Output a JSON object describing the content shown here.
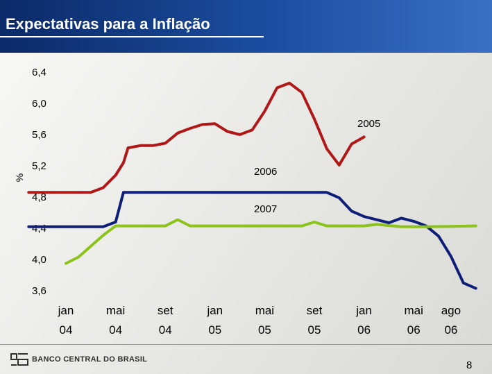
{
  "slide": {
    "title": "Expectativas para a Inflação",
    "footer_bank": "BANCO CENTRAL DO BRASIL",
    "page_number": "8"
  },
  "chart_data": {
    "type": "line",
    "title": "Expectativas para a Inflação",
    "ylabel": "%",
    "ylim": [
      3.6,
      6.4
    ],
    "yticks": [
      6.4,
      6.0,
      5.6,
      5.2,
      4.8,
      4.4,
      4.0,
      3.6
    ],
    "ytick_labels": [
      "6,4",
      "6,0",
      "5,6",
      "5,2",
      "4,8",
      "4,4",
      "4,0",
      "3,6"
    ],
    "xticks": [
      {
        "top": "jan",
        "bottom": "04",
        "date": "2004-01"
      },
      {
        "top": "mai",
        "bottom": "04",
        "date": "2004-05"
      },
      {
        "top": "set",
        "bottom": "04",
        "date": "2004-09"
      },
      {
        "top": "jan",
        "bottom": "05",
        "date": "2005-01"
      },
      {
        "top": "mai",
        "bottom": "05",
        "date": "2005-05"
      },
      {
        "top": "set",
        "bottom": "05",
        "date": "2005-09"
      },
      {
        "top": "jan",
        "bottom": "06",
        "date": "2006-01"
      },
      {
        "top": "mai",
        "bottom": "06",
        "date": "2006-05"
      },
      {
        "top": "ago",
        "bottom": "06",
        "date": "2006-08"
      }
    ],
    "grid": false,
    "series": [
      {
        "name": "2005",
        "color": "#b01818",
        "points": [
          [
            "2003-10",
            4.86
          ],
          [
            "2004-03",
            4.86
          ],
          [
            "2004-04",
            4.92
          ],
          [
            "2004-05",
            5.08
          ],
          [
            "2004-05-20",
            5.24
          ],
          [
            "2004-06",
            5.43
          ],
          [
            "2004-07",
            5.46
          ],
          [
            "2004-08",
            5.46
          ],
          [
            "2004-09",
            5.49
          ],
          [
            "2004-10",
            5.62
          ],
          [
            "2004-11",
            5.68
          ],
          [
            "2004-12",
            5.73
          ],
          [
            "2005-01",
            5.74
          ],
          [
            "2005-02",
            5.64
          ],
          [
            "2005-03",
            5.6
          ],
          [
            "2005-04",
            5.66
          ],
          [
            "2005-05",
            5.9
          ],
          [
            "2005-06",
            6.2
          ],
          [
            "2005-07",
            6.26
          ],
          [
            "2005-08",
            6.14
          ],
          [
            "2005-09",
            5.8
          ],
          [
            "2005-10",
            5.42
          ],
          [
            "2005-11",
            5.21
          ],
          [
            "2005-12",
            5.48
          ],
          [
            "2006-01",
            5.57
          ]
        ]
      },
      {
        "name": "2006",
        "color": "#0e1e78",
        "points": [
          [
            "2003-10",
            4.42
          ],
          [
            "2004-04",
            4.42
          ],
          [
            "2004-05",
            4.48
          ],
          [
            "2004-05-20",
            4.86
          ],
          [
            "2005-10",
            4.86
          ],
          [
            "2005-11",
            4.79
          ],
          [
            "2005-12",
            4.62
          ],
          [
            "2006-01",
            4.55
          ],
          [
            "2006-02",
            4.51
          ],
          [
            "2006-03",
            4.47
          ],
          [
            "2006-04",
            4.53
          ],
          [
            "2006-05",
            4.49
          ],
          [
            "2006-06",
            4.43
          ],
          [
            "2006-07",
            4.3
          ],
          [
            "2006-08",
            4.04
          ],
          [
            "2006-09",
            3.7
          ],
          [
            "2006-10",
            3.63
          ]
        ]
      },
      {
        "name": "2007",
        "color": "#8cc31a",
        "points": [
          [
            "2004-01",
            3.95
          ],
          [
            "2004-02",
            4.03
          ],
          [
            "2004-03",
            4.17
          ],
          [
            "2004-04",
            4.31
          ],
          [
            "2004-05",
            4.43
          ],
          [
            "2004-06",
            4.43
          ],
          [
            "2004-09",
            4.43
          ],
          [
            "2004-10",
            4.51
          ],
          [
            "2004-11",
            4.43
          ],
          [
            "2005-01",
            4.43
          ],
          [
            "2005-08",
            4.43
          ],
          [
            "2005-09",
            4.48
          ],
          [
            "2005-10",
            4.43
          ],
          [
            "2006-01",
            4.43
          ],
          [
            "2006-02",
            4.45
          ],
          [
            "2006-04",
            4.42
          ],
          [
            "2006-06",
            4.42
          ],
          [
            "2006-10",
            4.43
          ]
        ]
      }
    ]
  }
}
